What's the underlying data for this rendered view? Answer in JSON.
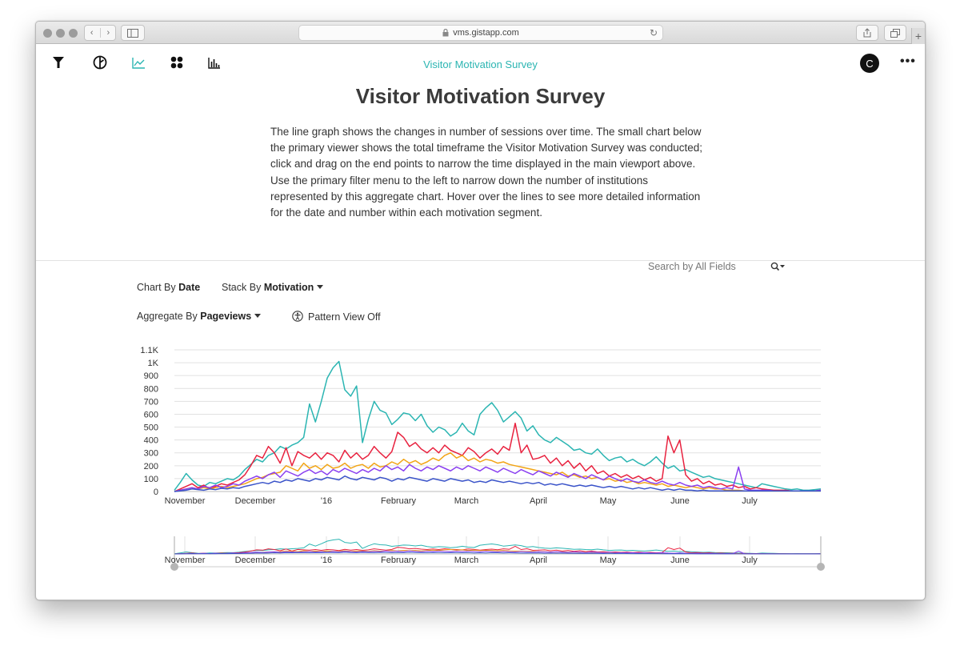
{
  "browser": {
    "url": "vms.gistapp.com"
  },
  "app": {
    "nav_title": "Visitor Motivation Survey",
    "user_initial": "C",
    "nav_icons": [
      "filter-icon",
      "compass-icon",
      "line-chart-icon",
      "grid-dots-icon",
      "bar-chart-icon"
    ],
    "active_icon": "line-chart-icon",
    "accent_color": "#2bb5b2"
  },
  "page": {
    "title": "Visitor Motivation Survey",
    "description": "The line graph shows the changes in number of sessions over time. The small chart below the primary viewer shows the total timeframe the Visitor Motivation Survey was conducted; click and drag on the end points to narrow the time displayed in the main viewport above. Use the primary filter menu to the left to narrow down the number of institutions represented by this aggregate chart. Hover over the lines to see more detailed information for the date and number within each motivation segment."
  },
  "controls": {
    "chart_by_label": "Chart By",
    "chart_by_value": "Date",
    "stack_by_label": "Stack By",
    "stack_by_value": "Motivation",
    "aggregate_by_label": "Aggregate By",
    "aggregate_by_value": "Pageviews",
    "pattern_view": "Pattern View Off",
    "search_placeholder": "Search by All Fields"
  },
  "chart_data": {
    "type": "line",
    "x_ticks": [
      "November",
      "December",
      "'16",
      "February",
      "March",
      "April",
      "May",
      "June",
      "July"
    ],
    "y_ticks": [
      "0",
      "100",
      "200",
      "300",
      "400",
      "500",
      "600",
      "700",
      "800",
      "900",
      "1K",
      "1.1K"
    ],
    "ylim": [
      0,
      1100
    ],
    "grid": true,
    "series": [
      {
        "color": "#2bb5b2",
        "values": [
          10,
          70,
          140,
          90,
          50,
          40,
          70,
          60,
          80,
          100,
          90,
          120,
          170,
          210,
          250,
          230,
          280,
          300,
          350,
          330,
          360,
          380,
          420,
          680,
          540,
          700,
          880,
          960,
          1010,
          790,
          740,
          820,
          380,
          560,
          700,
          630,
          610,
          520,
          560,
          610,
          600,
          550,
          600,
          510,
          460,
          500,
          480,
          430,
          460,
          530,
          470,
          440,
          600,
          650,
          690,
          630,
          540,
          580,
          620,
          570,
          470,
          510,
          440,
          400,
          380,
          420,
          390,
          360,
          320,
          330,
          300,
          290,
          330,
          280,
          240,
          260,
          270,
          230,
          250,
          220,
          200,
          230,
          270,
          220,
          180,
          200,
          160,
          170,
          150,
          130,
          110,
          120,
          100,
          90,
          80,
          70,
          60,
          50,
          40,
          30,
          60,
          50,
          40,
          30,
          20,
          15,
          20,
          10,
          10,
          15,
          20
        ]
      },
      {
        "color": "#e8223f",
        "values": [
          0,
          20,
          40,
          60,
          30,
          50,
          20,
          40,
          60,
          50,
          70,
          90,
          130,
          200,
          280,
          260,
          350,
          300,
          220,
          340,
          200,
          310,
          280,
          260,
          300,
          250,
          300,
          280,
          230,
          320,
          260,
          300,
          250,
          280,
          350,
          300,
          260,
          310,
          460,
          420,
          350,
          380,
          330,
          300,
          340,
          300,
          360,
          320,
          300,
          280,
          340,
          310,
          260,
          300,
          330,
          290,
          350,
          320,
          530,
          300,
          360,
          250,
          260,
          280,
          220,
          260,
          200,
          240,
          180,
          220,
          160,
          200,
          140,
          160,
          120,
          140,
          110,
          130,
          100,
          120,
          90,
          110,
          80,
          100,
          430,
          300,
          400,
          130,
          80,
          100,
          60,
          80,
          50,
          60,
          40,
          50,
          30,
          40,
          20,
          30,
          20,
          15,
          10,
          10,
          10,
          5,
          5,
          5,
          5,
          5,
          10
        ]
      },
      {
        "color": "#f2a516",
        "values": [
          0,
          10,
          20,
          30,
          20,
          30,
          20,
          30,
          40,
          30,
          40,
          50,
          60,
          80,
          100,
          110,
          130,
          140,
          150,
          200,
          180,
          160,
          220,
          180,
          200,
          170,
          210,
          180,
          190,
          220,
          180,
          200,
          210,
          180,
          220,
          190,
          200,
          230,
          210,
          250,
          220,
          240,
          210,
          230,
          260,
          240,
          280,
          300,
          260,
          280,
          240,
          260,
          230,
          250,
          240,
          220,
          230,
          210,
          200,
          190,
          180,
          170,
          160,
          150,
          140,
          130,
          150,
          120,
          130,
          110,
          120,
          100,
          110,
          90,
          100,
          80,
          90,
          70,
          80,
          60,
          70,
          60,
          50,
          60,
          40,
          50,
          40,
          30,
          40,
          30,
          20,
          30,
          20,
          20,
          10,
          10,
          10,
          5,
          5,
          5,
          5,
          5,
          5,
          5,
          5,
          5,
          5,
          5,
          5,
          5,
          5
        ]
      },
      {
        "color": "#8a3ff0",
        "values": [
          0,
          10,
          20,
          30,
          20,
          40,
          30,
          50,
          30,
          40,
          60,
          50,
          80,
          100,
          120,
          100,
          130,
          150,
          110,
          160,
          140,
          120,
          150,
          170,
          140,
          160,
          130,
          170,
          150,
          180,
          160,
          140,
          170,
          150,
          180,
          160,
          200,
          170,
          190,
          160,
          210,
          180,
          160,
          190,
          170,
          200,
          180,
          160,
          190,
          170,
          200,
          180,
          160,
          190,
          170,
          150,
          180,
          160,
          140,
          170,
          150,
          130,
          160,
          140,
          120,
          150,
          130,
          110,
          140,
          120,
          100,
          130,
          110,
          90,
          120,
          100,
          80,
          100,
          80,
          70,
          90,
          70,
          60,
          80,
          60,
          50,
          70,
          50,
          40,
          50,
          30,
          40,
          30,
          20,
          30,
          20,
          190,
          20,
          10,
          10,
          10,
          10,
          5,
          5,
          5,
          5,
          5,
          5,
          5,
          5,
          10
        ]
      },
      {
        "color": "#3a53c9",
        "values": [
          0,
          5,
          10,
          20,
          15,
          10,
          20,
          15,
          25,
          20,
          30,
          25,
          40,
          50,
          60,
          70,
          60,
          80,
          70,
          90,
          80,
          100,
          90,
          80,
          100,
          90,
          110,
          100,
          90,
          120,
          100,
          90,
          110,
          100,
          90,
          110,
          100,
          80,
          100,
          90,
          110,
          100,
          90,
          80,
          100,
          90,
          80,
          100,
          90,
          80,
          90,
          70,
          80,
          70,
          90,
          80,
          70,
          80,
          70,
          60,
          70,
          60,
          70,
          50,
          60,
          50,
          60,
          50,
          40,
          50,
          40,
          50,
          40,
          30,
          40,
          30,
          40,
          30,
          20,
          30,
          20,
          30,
          20,
          10,
          20,
          10,
          20,
          10,
          10,
          5,
          10,
          5,
          5,
          5,
          5,
          5,
          5,
          5,
          5,
          5,
          5,
          5,
          5,
          5,
          5,
          5,
          5,
          5,
          5,
          5,
          5
        ]
      }
    ]
  }
}
